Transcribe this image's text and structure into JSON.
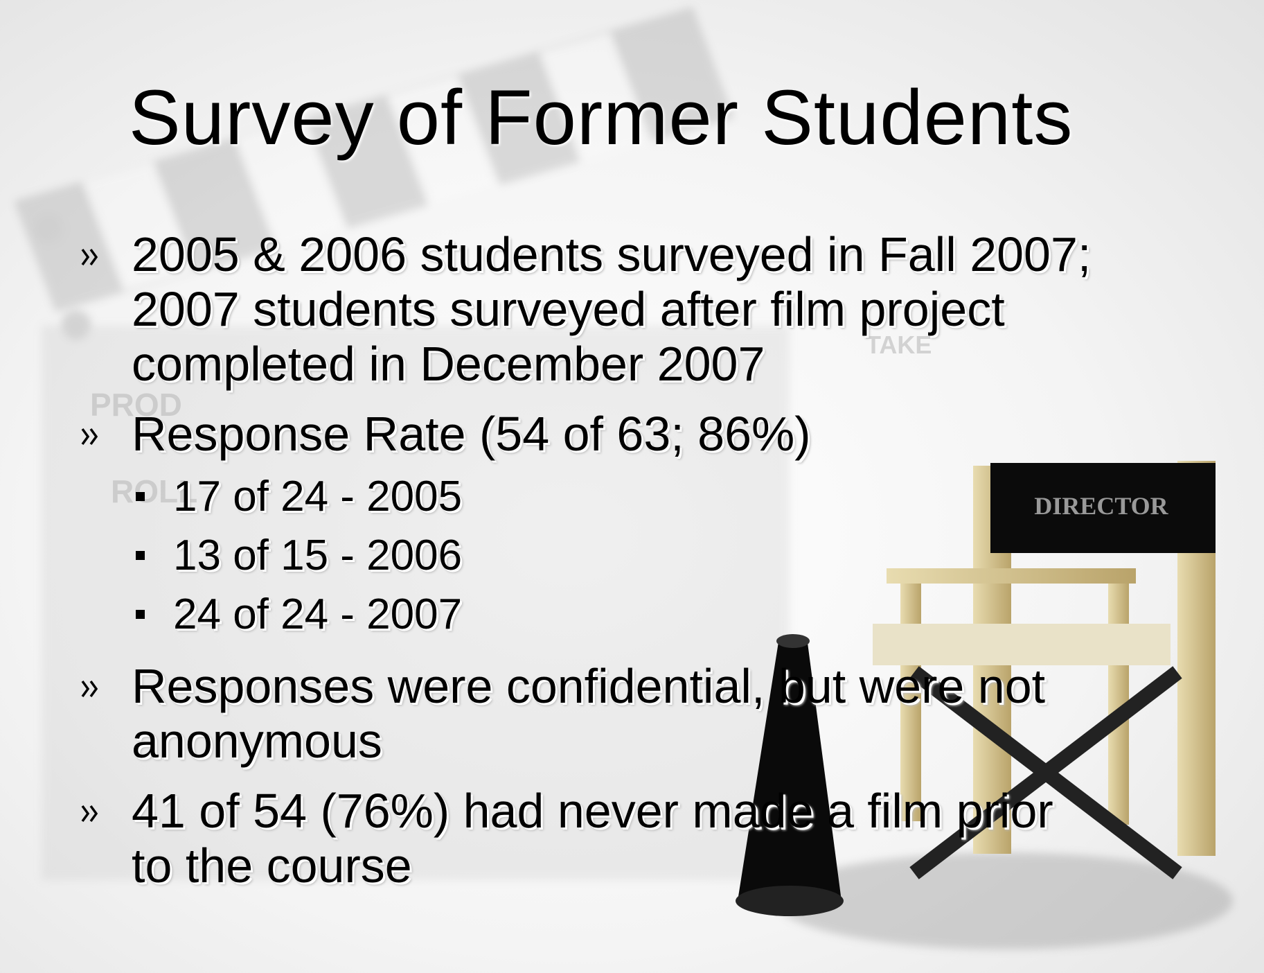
{
  "title": "Survey of Former Students",
  "bullets": [
    {
      "text": "2005 & 2006 students surveyed in Fall 2007; 2007 students surveyed after film project completed in December 2007"
    },
    {
      "text": "Response Rate (54 of 63; 86%)",
      "sub_items": [
        "17 of 24 - 2005",
        "13 of 15 - 2006",
        "24 of 24 - 2007"
      ]
    },
    {
      "text": "Responses were confidential, but were not anonymous"
    },
    {
      "text": "41 of 54 (76%) had never made a film prior to the course"
    }
  ],
  "background": {
    "chair_label": "DIRECTOR",
    "clapperboard_labels": [
      "PROD",
      "ROLL",
      "TAKE"
    ]
  }
}
